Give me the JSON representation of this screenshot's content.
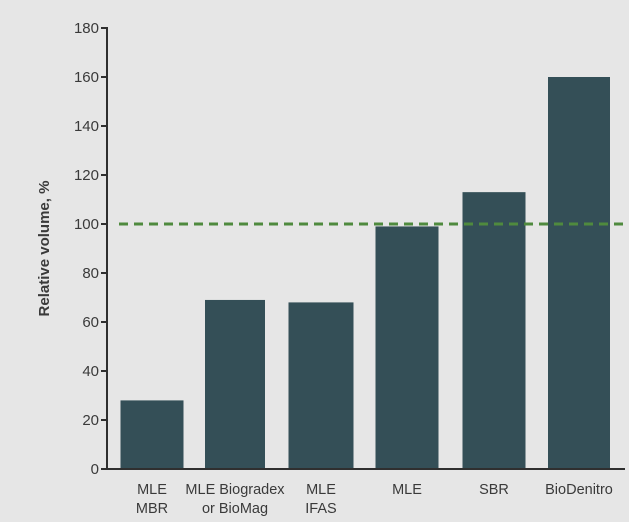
{
  "chart_data": {
    "type": "bar",
    "categories": [
      [
        "MLE",
        "MBR"
      ],
      [
        "MLE Biogradex",
        "or BioMag"
      ],
      [
        "MLE",
        "IFAS"
      ],
      [
        "MLE"
      ],
      [
        "SBR"
      ],
      [
        "BioDenitro"
      ]
    ],
    "values": [
      28,
      69,
      68,
      99,
      113,
      160
    ],
    "ylabel": "Relative volume, %",
    "xlabel": "",
    "ylim": [
      0,
      180
    ],
    "yticks": [
      0,
      20,
      40,
      60,
      80,
      100,
      120,
      140,
      160,
      180
    ],
    "reference_line": {
      "value": 100,
      "style": "dashed"
    },
    "grid": false,
    "colors": {
      "bar": "#344f57",
      "reference": "#4f8a3e",
      "axis": "#2f2f2f",
      "background": "#e6e6e6"
    }
  }
}
